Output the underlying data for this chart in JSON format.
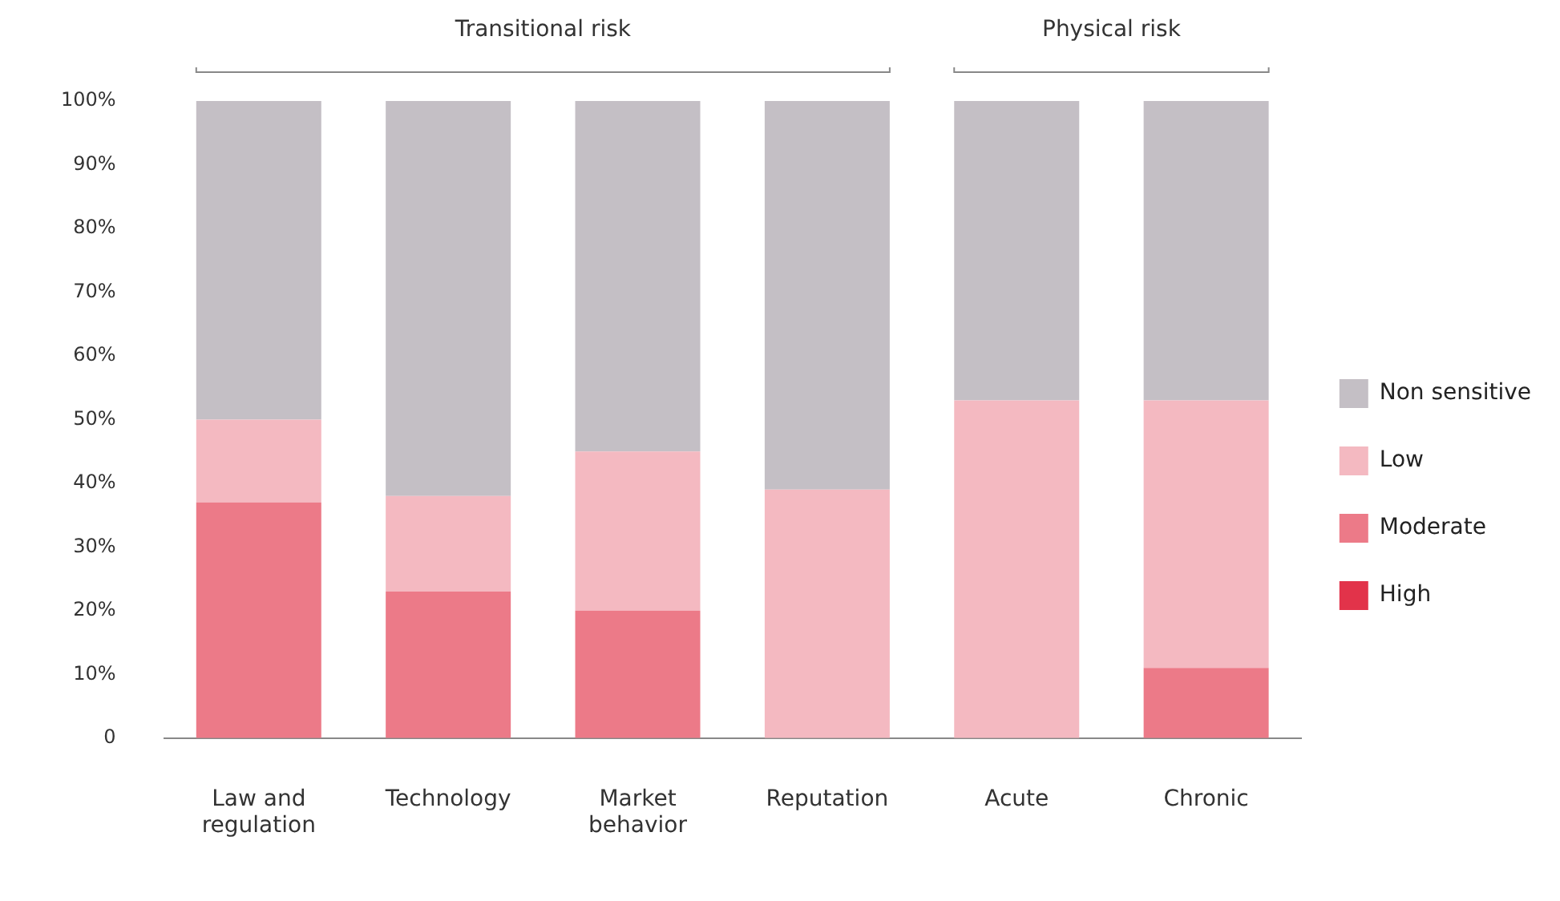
{
  "chart_data": {
    "type": "bar",
    "stacked": true,
    "categories": [
      "Law and regulation",
      "Technology",
      "Market behavior",
      "Reputation",
      "Acute",
      "Chronic"
    ],
    "series": [
      {
        "name": "High",
        "color": "#e2334a",
        "values": [
          0,
          0,
          0,
          0,
          0,
          0
        ]
      },
      {
        "name": "Moderate",
        "color": "#ec7a88",
        "values": [
          37,
          23,
          20,
          0,
          0,
          11
        ]
      },
      {
        "name": "Low",
        "color": "#f4b9c1",
        "values": [
          13,
          15,
          25,
          39,
          53,
          42
        ]
      },
      {
        "name": "Non sensitive",
        "color": "#c4bfc5",
        "values": [
          50,
          62,
          55,
          61,
          47,
          47
        ]
      }
    ],
    "ylim": [
      0,
      100
    ],
    "yticks": [
      0,
      {
        "value": 10,
        "label": "10%"
      },
      {
        "value": 20,
        "label": "20%"
      },
      {
        "value": 30,
        "label": "30%"
      },
      {
        "value": 40,
        "label": "40%"
      },
      {
        "value": 50,
        "label": "50%"
      },
      {
        "value": 60,
        "label": "60%"
      },
      {
        "value": 70,
        "label": "70%"
      },
      {
        "value": 80,
        "label": "80%"
      },
      {
        "value": 90,
        "label": "90%"
      },
      {
        "value": 100,
        "label": "100%"
      }
    ],
    "annotations": [
      "Transitional risk",
      "Physical risk"
    ],
    "grid": false,
    "legend": "right"
  }
}
